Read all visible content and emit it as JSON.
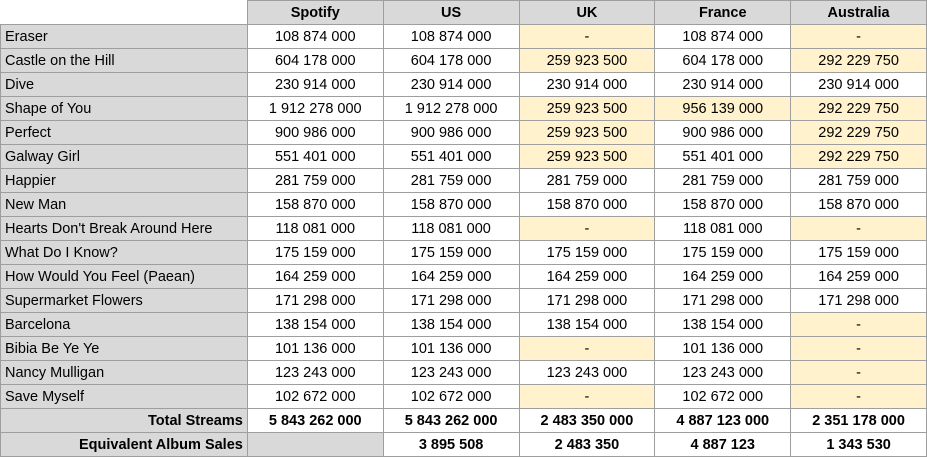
{
  "columns": [
    "Spotify",
    "US",
    "UK",
    "France",
    "Australia"
  ],
  "rows": [
    {
      "name": "Eraser",
      "values": [
        "108 874 000",
        "108 874 000",
        "-",
        "108 874 000",
        "-"
      ],
      "highlight": [
        false,
        false,
        true,
        false,
        true
      ]
    },
    {
      "name": "Castle on the Hill",
      "values": [
        "604 178 000",
        "604 178 000",
        "259 923 500",
        "604 178 000",
        "292 229 750"
      ],
      "highlight": [
        false,
        false,
        true,
        false,
        true
      ]
    },
    {
      "name": "Dive",
      "values": [
        "230 914 000",
        "230 914 000",
        "230 914 000",
        "230 914 000",
        "230 914 000"
      ],
      "highlight": [
        false,
        false,
        false,
        false,
        false
      ]
    },
    {
      "name": "Shape of You",
      "values": [
        "1 912 278 000",
        "1 912 278 000",
        "259 923 500",
        "956 139 000",
        "292 229 750"
      ],
      "highlight": [
        false,
        false,
        true,
        true,
        true
      ]
    },
    {
      "name": "Perfect",
      "values": [
        "900 986 000",
        "900 986 000",
        "259 923 500",
        "900 986 000",
        "292 229 750"
      ],
      "highlight": [
        false,
        false,
        true,
        false,
        true
      ]
    },
    {
      "name": "Galway Girl",
      "values": [
        "551 401 000",
        "551 401 000",
        "259 923 500",
        "551 401 000",
        "292 229 750"
      ],
      "highlight": [
        false,
        false,
        true,
        false,
        true
      ]
    },
    {
      "name": "Happier",
      "values": [
        "281 759 000",
        "281 759 000",
        "281 759 000",
        "281 759 000",
        "281 759 000"
      ],
      "highlight": [
        false,
        false,
        false,
        false,
        false
      ]
    },
    {
      "name": "New Man",
      "values": [
        "158 870 000",
        "158 870 000",
        "158 870 000",
        "158 870 000",
        "158 870 000"
      ],
      "highlight": [
        false,
        false,
        false,
        false,
        false
      ]
    },
    {
      "name": "Hearts Don't Break Around Here",
      "values": [
        "118 081 000",
        "118 081 000",
        "-",
        "118 081 000",
        "-"
      ],
      "highlight": [
        false,
        false,
        true,
        false,
        true
      ]
    },
    {
      "name": "What Do I Know?",
      "values": [
        "175 159 000",
        "175 159 000",
        "175 159 000",
        "175 159 000",
        "175 159 000"
      ],
      "highlight": [
        false,
        false,
        false,
        false,
        false
      ]
    },
    {
      "name": "How Would You Feel (Paean)",
      "values": [
        "164 259 000",
        "164 259 000",
        "164 259 000",
        "164 259 000",
        "164 259 000"
      ],
      "highlight": [
        false,
        false,
        false,
        false,
        false
      ]
    },
    {
      "name": "Supermarket Flowers",
      "values": [
        "171 298 000",
        "171 298 000",
        "171 298 000",
        "171 298 000",
        "171 298 000"
      ],
      "highlight": [
        false,
        false,
        false,
        false,
        false
      ]
    },
    {
      "name": "Barcelona",
      "values": [
        "138 154 000",
        "138 154 000",
        "138 154 000",
        "138 154 000",
        "-"
      ],
      "highlight": [
        false,
        false,
        false,
        false,
        true
      ]
    },
    {
      "name": "Bibia Be Ye Ye",
      "values": [
        "101 136 000",
        "101 136 000",
        "-",
        "101 136 000",
        "-"
      ],
      "highlight": [
        false,
        false,
        true,
        false,
        true
      ]
    },
    {
      "name": "Nancy Mulligan",
      "values": [
        "123 243 000",
        "123 243 000",
        "123 243 000",
        "123 243 000",
        "-"
      ],
      "highlight": [
        false,
        false,
        false,
        false,
        true
      ]
    },
    {
      "name": "Save Myself",
      "values": [
        "102 672 000",
        "102 672 000",
        "-",
        "102 672 000",
        "-"
      ],
      "highlight": [
        false,
        false,
        true,
        false,
        true
      ]
    }
  ],
  "total": {
    "label": "Total Streams",
    "values": [
      "5 843 262 000",
      "5 843 262 000",
      "2 483 350 000",
      "4 887 123 000",
      "2 351 178 000"
    ]
  },
  "sales": {
    "label": "Equivalent Album Sales",
    "values": [
      "",
      "3 895 508",
      "2 483 350",
      "4 887 123",
      "1 343 530"
    ]
  },
  "colors": {
    "header_bg": "#d9d9d9",
    "highlight_bg": "#fff2cc",
    "border": "#9e9e9e"
  }
}
